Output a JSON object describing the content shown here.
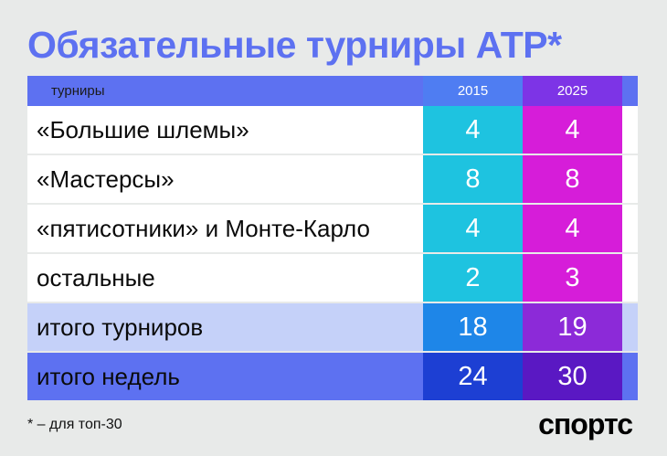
{
  "title": "Обязательные турниры АТР*",
  "table": {
    "header": {
      "label": "турниры",
      "col_2015": "2015",
      "col_2025": "2025"
    },
    "rows": [
      {
        "label": "«Большие шлемы»",
        "v2015": "4",
        "v2025": "4"
      },
      {
        "label": "«Мастерсы»",
        "v2015": "8",
        "v2025": "8"
      },
      {
        "label": "«пятисотники» и Монте-Карло",
        "v2015": "4",
        "v2025": "4"
      },
      {
        "label": "остальные",
        "v2015": "2",
        "v2025": "3"
      }
    ],
    "totals": [
      {
        "label": "итого турниров",
        "v2015": "18",
        "v2025": "19"
      },
      {
        "label": "итого недель",
        "v2015": "24",
        "v2025": "30"
      }
    ]
  },
  "footnote": "* – для топ-30",
  "logo": "спортс",
  "colors": {
    "accent": "#5d71f1",
    "col2015": "#1ec3e0",
    "col2025": "#d61dd9",
    "background": "#e8eae9"
  }
}
